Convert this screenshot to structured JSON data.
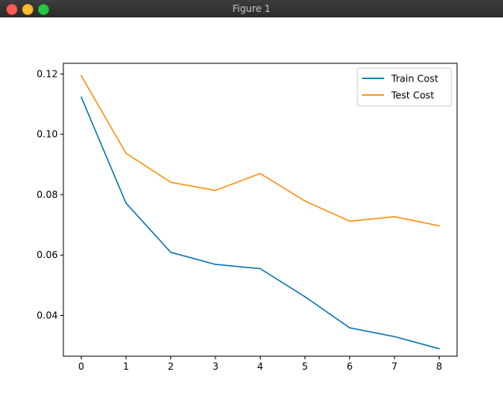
{
  "window": {
    "title": "Figure 1",
    "buttons": [
      "close",
      "minimize",
      "maximize"
    ]
  },
  "chart_data": {
    "type": "line",
    "title": "",
    "xlabel": "",
    "ylabel": "",
    "x": [
      0,
      1,
      2,
      3,
      4,
      5,
      6,
      7,
      8
    ],
    "series": [
      {
        "name": "Train Cost",
        "color": "#0072b2",
        "values": [
          0.1123,
          0.0772,
          0.0609,
          0.0569,
          0.0555,
          0.0462,
          0.0359,
          0.033,
          0.029
        ]
      },
      {
        "name": "Test Cost",
        "color": "#ff8c00",
        "values": [
          0.1194,
          0.0937,
          0.0841,
          0.0814,
          0.087,
          0.0779,
          0.0712,
          0.0727,
          0.0697
        ]
      }
    ],
    "xlim": [
      -0.4,
      8.4
    ],
    "ylim": [
      0.0265,
      0.1235
    ],
    "xticks": [
      "0",
      "1",
      "2",
      "3",
      "4",
      "5",
      "6",
      "7",
      "8"
    ],
    "yticks": [
      "0.04",
      "0.06",
      "0.08",
      "0.10",
      "0.12"
    ],
    "grid": false,
    "legend_position": "top-right"
  }
}
